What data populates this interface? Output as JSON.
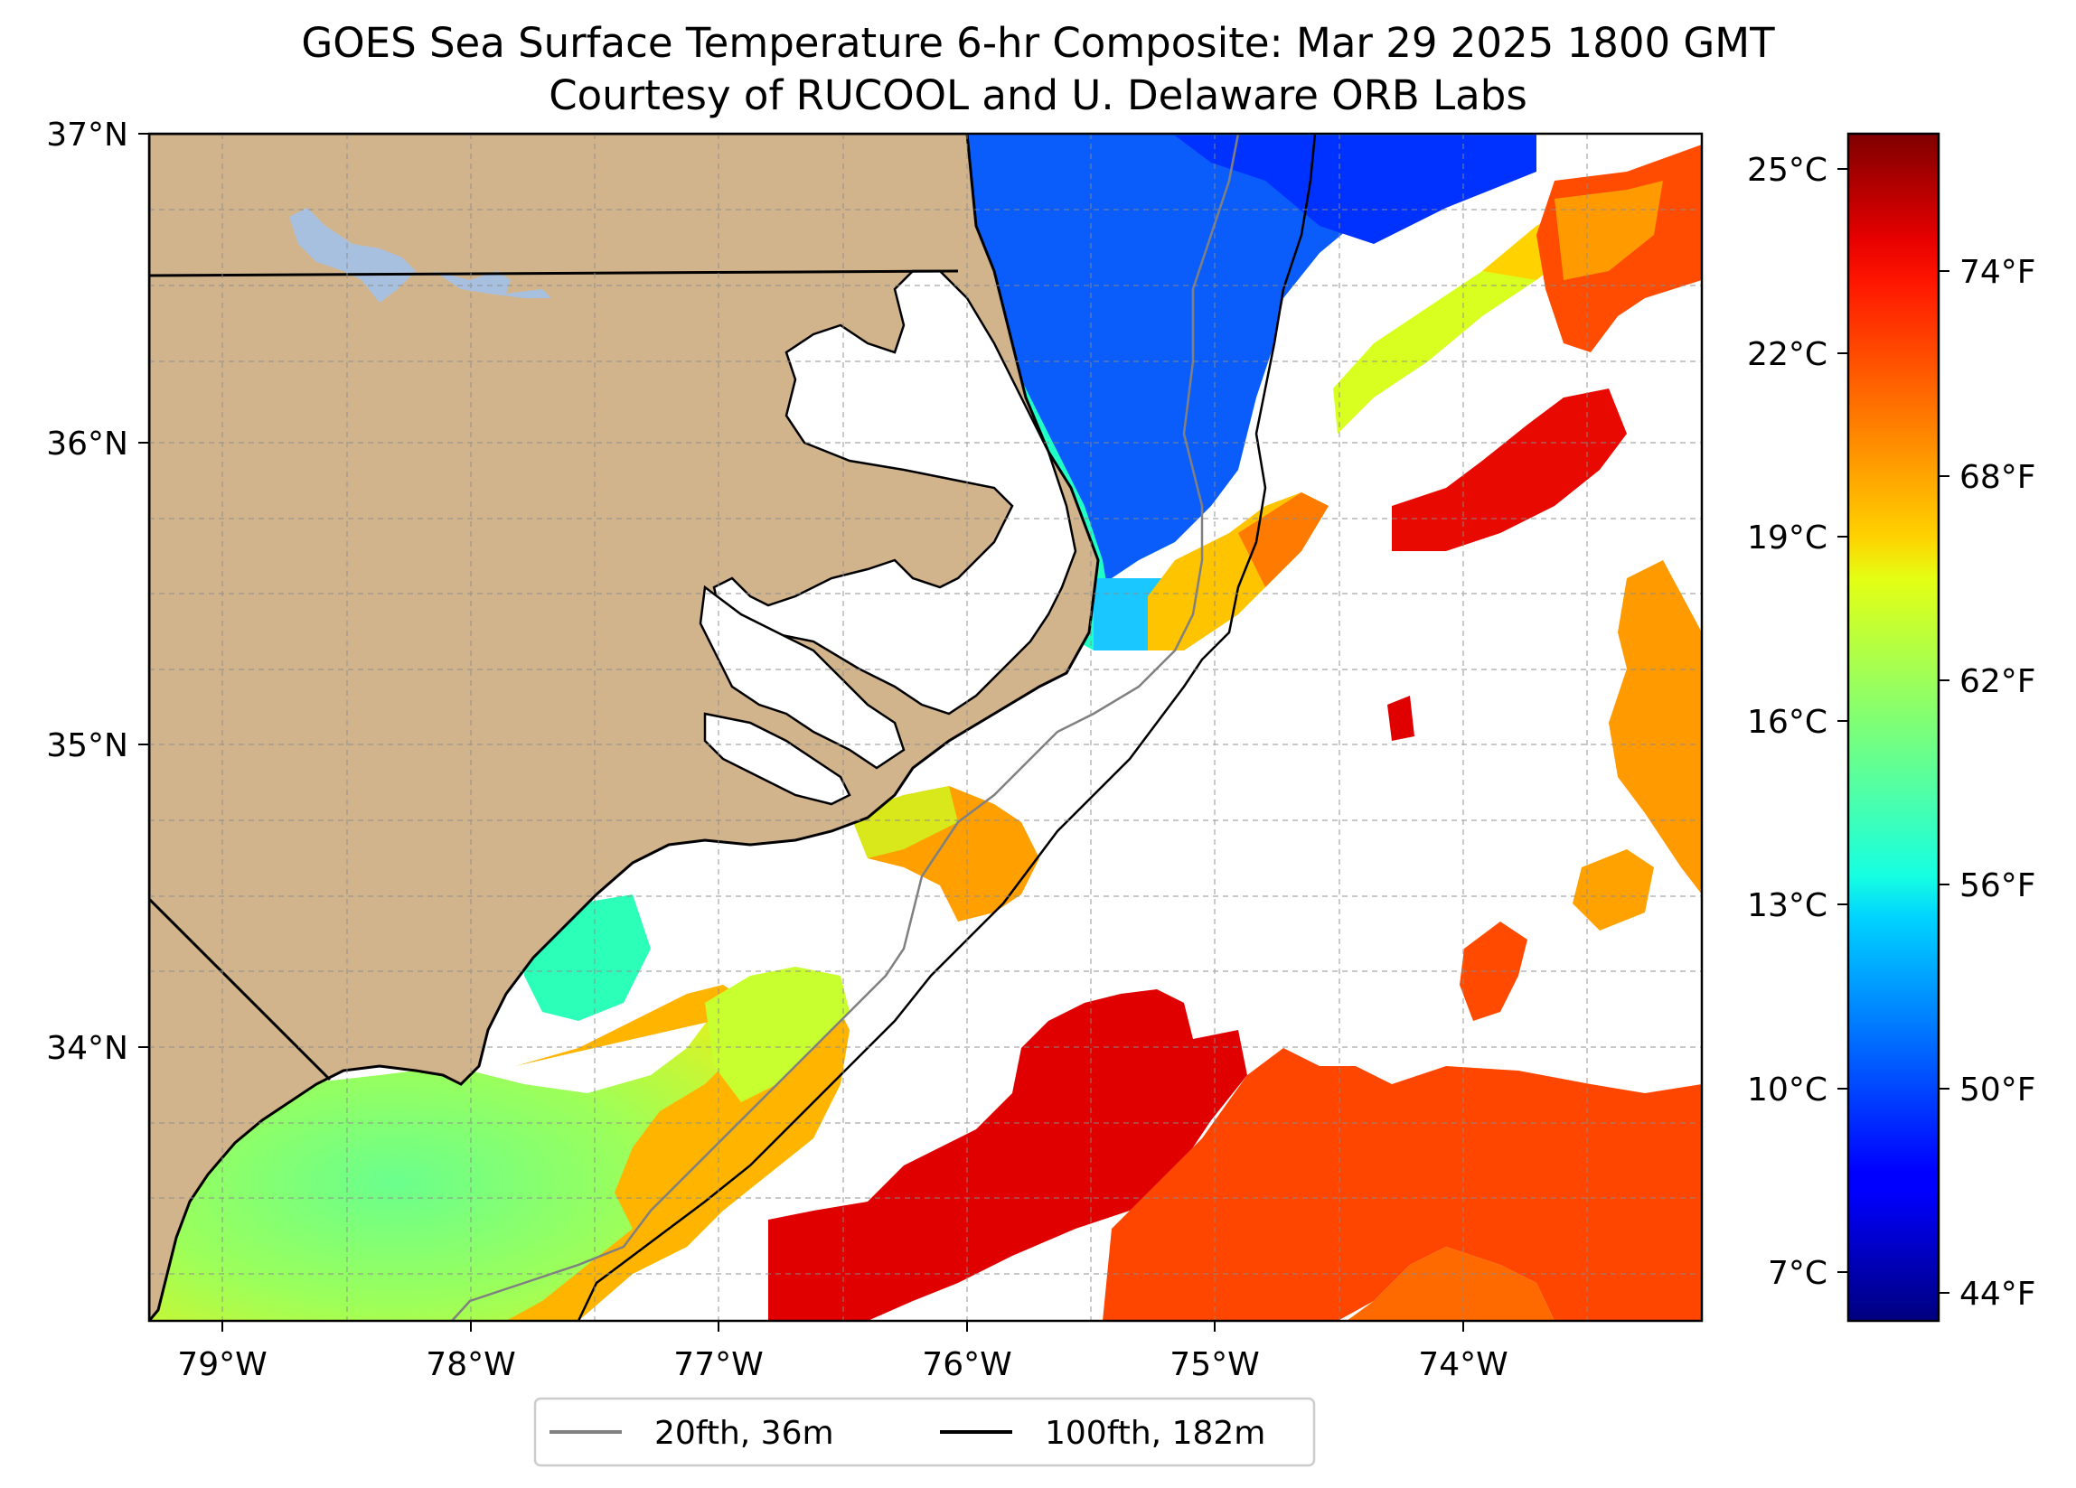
{
  "title": "GOES Sea Surface Temperature 6-hr Composite: Mar 29 2025 1800 GMT",
  "subtitle": "Courtesy of RUCOOL and U. Delaware ORB Labs",
  "map": {
    "lon_range": [
      -79.3,
      -73.05
    ],
    "lat_range": [
      33.1,
      37.0
    ],
    "lon_ticks": [
      "79°W",
      "78°W",
      "77°W",
      "76°W",
      "75°W",
      "74°W"
    ],
    "lat_ticks": [
      "37°N",
      "36°N",
      "35°N",
      "34°N"
    ],
    "land_color": "#d2b48c",
    "water_feature_color": "#a8c0e0",
    "gridlines": "dashed gray"
  },
  "colorbar": {
    "colormap": "jet",
    "celsius_range": [
      6.5,
      25.5
    ],
    "celsius_ticks": [
      "25°C",
      "22°C",
      "19°C",
      "16°C",
      "13°C",
      "10°C",
      "7°C"
    ],
    "fahrenheit_ticks": [
      "74°F",
      "68°F",
      "62°F",
      "56°F",
      "50°F",
      "44°F"
    ]
  },
  "legend": {
    "items": [
      {
        "label": "20fth, 36m",
        "color": "#808080"
      },
      {
        "label": "100fth, 182m",
        "color": "#000000"
      }
    ],
    "placement": "bottom-center"
  }
}
